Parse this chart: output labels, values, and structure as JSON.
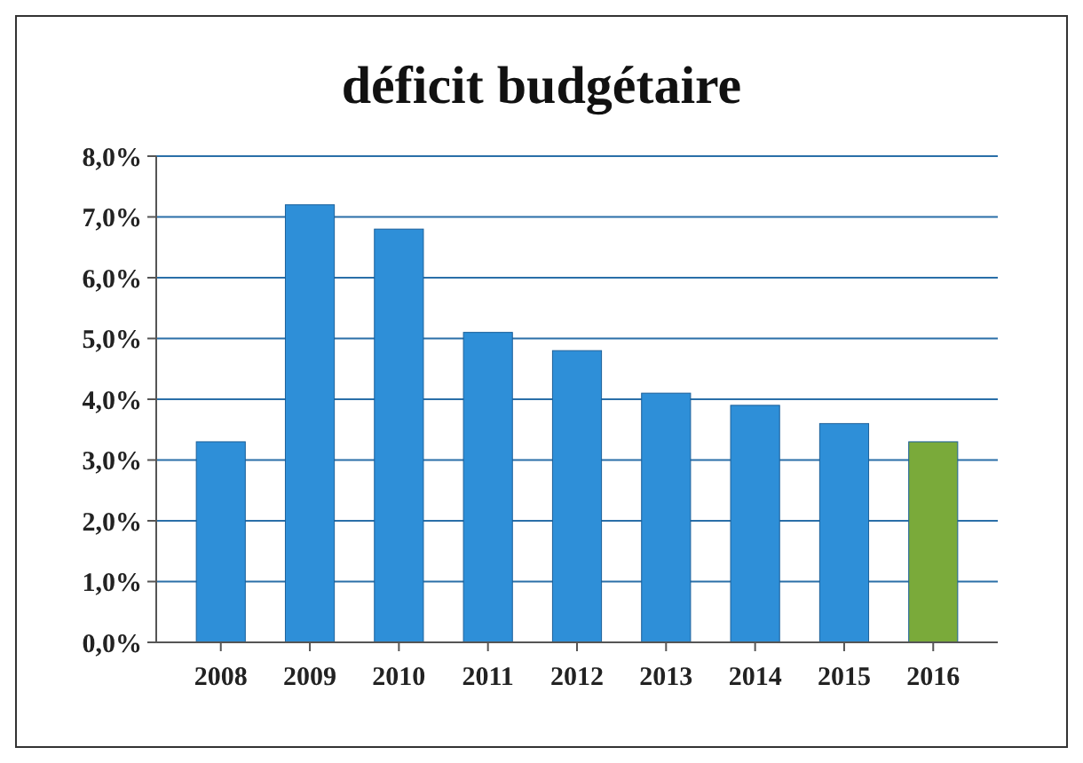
{
  "chart_data": {
    "type": "bar",
    "title": "déficit budgétaire",
    "categories": [
      "2008",
      "2009",
      "2010",
      "2011",
      "2012",
      "2013",
      "2014",
      "2015",
      "2016"
    ],
    "values": [
      3.3,
      7.2,
      6.8,
      5.1,
      4.8,
      4.1,
      3.9,
      3.6,
      3.3
    ],
    "colors": [
      "#2e8fd8",
      "#2e8fd8",
      "#2e8fd8",
      "#2e8fd8",
      "#2e8fd8",
      "#2e8fd8",
      "#2e8fd8",
      "#2e8fd8",
      "#7aaa3a"
    ],
    "ylim": [
      0,
      8
    ],
    "yticks": [
      {
        "value": 0,
        "label": "0,0%"
      },
      {
        "value": 1,
        "label": "1,0%"
      },
      {
        "value": 2,
        "label": "2,0%"
      },
      {
        "value": 3,
        "label": "3,0%"
      },
      {
        "value": 4,
        "label": "4,0%"
      },
      {
        "value": 5,
        "label": "5,0%"
      },
      {
        "value": 6,
        "label": "6,0%"
      },
      {
        "value": 7,
        "label": "7,0%"
      },
      {
        "value": 8,
        "label": "8,0%"
      }
    ],
    "grid": "y"
  }
}
